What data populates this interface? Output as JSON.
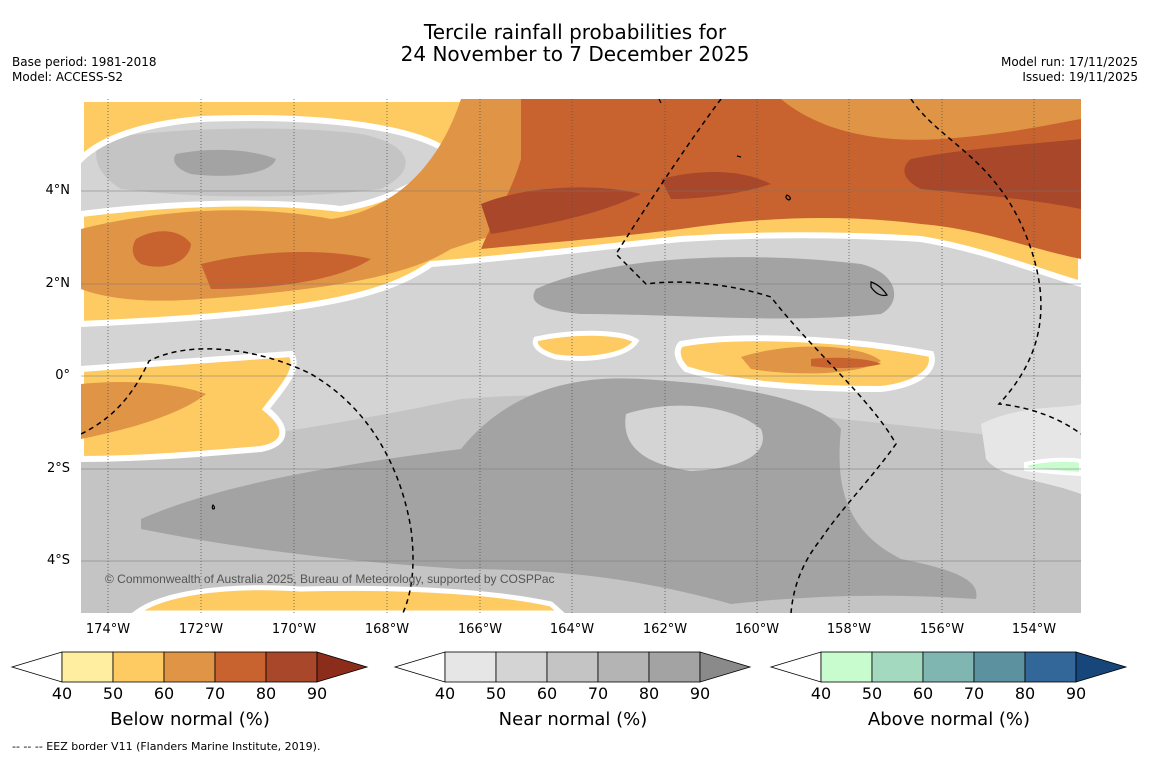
{
  "title": {
    "line1": "Tercile rainfall probabilities for",
    "line2": "24 November to 7 December 2025"
  },
  "meta_left": {
    "base_period": "Base period: 1981-2018",
    "model": "Model: ACCESS-S2"
  },
  "meta_right": {
    "model_run": "Model run: 17/11/2025",
    "issued": "Issued: 19/11/2025"
  },
  "map": {
    "longitude_ticks": [
      "174°W",
      "172°W",
      "170°W",
      "168°W",
      "166°W",
      "164°W",
      "162°W",
      "160°W",
      "158°W",
      "156°W",
      "154°W"
    ],
    "latitude_ticks": [
      "4°N",
      "2°N",
      "0°",
      "2°S",
      "4°S"
    ],
    "copyright": "© Commonwealth of Australia 2025, Bureau of Meteorology, supported by COSPPac",
    "colors": {
      "below": [
        "#ffeda0",
        "#fdcb62",
        "#e09446",
        "#c8632f",
        "#a8472a",
        "#8c2d1b"
      ],
      "near": [
        "#e6e6e6",
        "#d4d4d4",
        "#c4c4c4",
        "#b4b4b4",
        "#a3a3a3",
        "#8a8a8a"
      ],
      "above": [
        "#c8fcce",
        "#a3d9be",
        "#7fb6b2",
        "#5c919f",
        "#336699",
        "#17467a"
      ]
    }
  },
  "colorbars": [
    {
      "title": "Below normal (%)",
      "ticks": [
        "40",
        "50",
        "60",
        "70",
        "80",
        "90"
      ]
    },
    {
      "title": "Near normal (%)",
      "ticks": [
        "40",
        "50",
        "60",
        "70",
        "80",
        "90"
      ]
    },
    {
      "title": "Above normal (%)",
      "ticks": [
        "40",
        "50",
        "60",
        "70",
        "80",
        "90"
      ]
    }
  ],
  "footer": "--  --  -- EEZ border V11 (Flanders Marine Institute, 2019)."
}
